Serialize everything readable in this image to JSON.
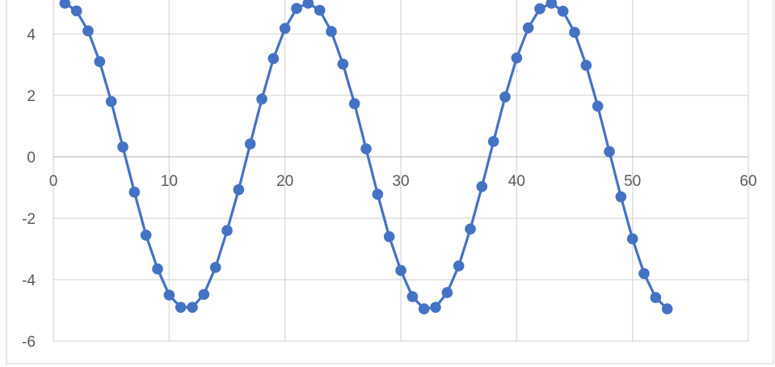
{
  "chart_data": {
    "type": "scatter",
    "title": "",
    "xlabel": "",
    "ylabel": "",
    "xlim": [
      0,
      60
    ],
    "ylim": [
      -6,
      5
    ],
    "x_ticks": [
      0,
      10,
      20,
      30,
      40,
      50,
      60
    ],
    "y_ticks": [
      -6,
      -4,
      -2,
      0,
      2,
      4
    ],
    "grid": true,
    "legend": "none",
    "line_color": "#4472C4",
    "marker_color": "#4472C4",
    "series": [
      {
        "x": [
          1,
          2,
          3,
          4,
          5,
          6,
          7,
          8,
          9,
          10,
          11,
          12,
          13,
          14,
          15,
          16,
          17,
          18,
          19,
          20,
          21,
          22,
          23,
          24,
          25,
          26,
          27,
          28,
          29,
          30,
          31,
          32,
          33,
          34,
          35,
          36,
          37,
          38,
          39,
          40,
          41,
          42,
          43,
          44,
          45,
          46,
          47,
          48,
          49,
          50,
          51,
          52,
          53
        ],
        "y": [
          5.0,
          4.75,
          4.1,
          3.1,
          1.8,
          0.32,
          -1.15,
          -2.55,
          -3.65,
          -4.5,
          -4.9,
          -4.9,
          -4.48,
          -3.6,
          -2.4,
          -1.07,
          0.42,
          1.88,
          3.2,
          4.18,
          4.83,
          5.0,
          4.77,
          4.08,
          3.02,
          1.73,
          0.26,
          -1.22,
          -2.6,
          -3.7,
          -4.55,
          -4.95,
          -4.9,
          -4.42,
          -3.55,
          -2.35,
          -0.97,
          0.5,
          1.95,
          3.22,
          4.2,
          4.82,
          5.0,
          4.74,
          4.05,
          2.98,
          1.65,
          0.17,
          -1.3,
          -2.67,
          -3.8,
          -4.58,
          -4.95
        ]
      }
    ]
  }
}
